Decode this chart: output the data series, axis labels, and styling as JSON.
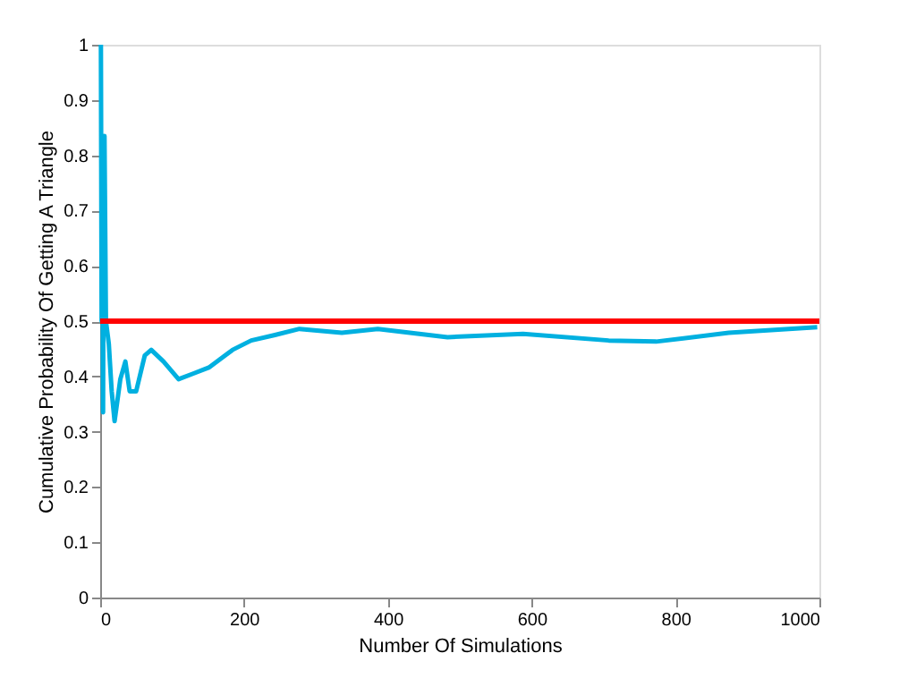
{
  "chart_data": {
    "type": "line",
    "xlabel": "Number Of Simulations",
    "ylabel": "Cumulative Probability Of Getting A Triangle",
    "xlim": [
      0,
      1000
    ],
    "ylim": [
      0,
      1
    ],
    "xticks": [
      0,
      200,
      400,
      600,
      800,
      1000
    ],
    "yticks": [
      0,
      0.1,
      0.2,
      0.3,
      0.4,
      0.5,
      0.6,
      0.7,
      0.8,
      0.9,
      1
    ],
    "grid": false,
    "line_style": "solid",
    "series": [
      {
        "color": "#00b0e0",
        "x": [
          1,
          2,
          3,
          4,
          5,
          6,
          8,
          12,
          16,
          20,
          28,
          35,
          41,
          50,
          62,
          71,
          88,
          109,
          129,
          151,
          184,
          210,
          243,
          277,
          336,
          386,
          483,
          588,
          707,
          773,
          874,
          997
        ],
        "values": [
          1,
          0.5,
          0.67,
          0.335,
          0.8,
          0.835,
          0.5,
          0.459,
          0.373,
          0.319,
          0.395,
          0.427,
          0.373,
          0.373,
          0.438,
          0.448,
          0.427,
          0.395,
          0.405,
          0.416,
          0.448,
          0.465,
          0.475,
          0.486,
          0.479,
          0.486,
          0.471,
          0.477,
          0.465,
          0.463,
          0.479,
          0.489
        ]
      }
    ],
    "ref_lines": [
      {
        "axis": "y",
        "value": 0.5,
        "color": "#ff0000"
      }
    ]
  }
}
